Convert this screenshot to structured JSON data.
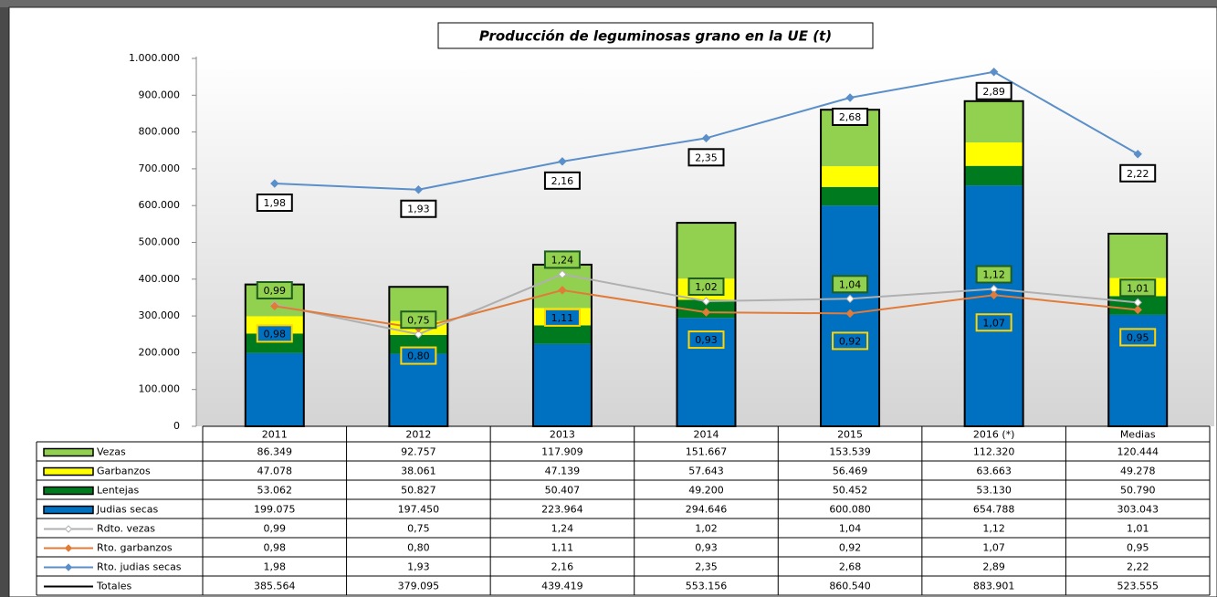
{
  "chart_data": {
    "type": "bar",
    "title": "Producción de leguminosas grano en la UE  (t)",
    "categories": [
      "2011",
      "2012",
      "2013",
      "2014",
      "2015",
      "2016 (*)",
      "Medias"
    ],
    "ylim": [
      0,
      1000000
    ],
    "yticks": [
      0,
      {
        "value": 100000,
        "label": "100.000"
      },
      {
        "value": 200000,
        "label": "200.000"
      },
      {
        "value": 300000,
        "label": "300.000"
      },
      {
        "value": 400000,
        "label": "400.000"
      },
      {
        "value": 500000,
        "label": "500.000"
      },
      {
        "value": 600000,
        "label": "600.000"
      },
      {
        "value": 700000,
        "label": "700.000"
      },
      {
        "value": 800000,
        "label": "800.000"
      },
      {
        "value": 900000,
        "label": "900.000"
      },
      {
        "value": 1000000,
        "label": "1.000.000"
      }
    ],
    "y2lim": [
      0,
      3
    ],
    "series": [
      {
        "name": "Vezas",
        "type": "bar",
        "color": "#92d050",
        "values": [
          86349,
          92757,
          117909,
          151667,
          153539,
          112320,
          120444
        ],
        "value_labels": [
          "86.349",
          "92.757",
          "117.909",
          "151.667",
          "153.539",
          "112.320",
          "120.444"
        ]
      },
      {
        "name": "Garbanzos",
        "type": "bar",
        "color": "#ffff00",
        "values": [
          47078,
          38061,
          47139,
          57643,
          56469,
          63663,
          49278
        ],
        "value_labels": [
          "47.078",
          "38.061",
          "47.139",
          "57.643",
          "56.469",
          "63.663",
          "49.278"
        ]
      },
      {
        "name": "Lentejas",
        "type": "bar",
        "color": "#007a1f",
        "values": [
          53062,
          50827,
          50407,
          49200,
          50452,
          53130,
          50790
        ],
        "value_labels": [
          "53.062",
          "50.827",
          "50.407",
          "49.200",
          "50.452",
          "53.130",
          "50.790"
        ]
      },
      {
        "name": "Judias secas",
        "type": "bar",
        "color": "#0070c0",
        "values": [
          199075,
          197450,
          223964,
          294646,
          600080,
          654788,
          303043
        ],
        "value_labels": [
          "199.075",
          "197.450",
          "223.964",
          "294.646",
          "600.080",
          "654.788",
          "303.043"
        ]
      },
      {
        "name": "Rdto. vezas",
        "type": "line",
        "axis": "y2",
        "color": "#b0b0b0",
        "values": [
          0.99,
          0.75,
          1.24,
          1.02,
          1.04,
          1.12,
          1.01
        ],
        "value_labels": [
          "0,99",
          "0,75",
          "1,24",
          "1,02",
          "1,04",
          "1,12",
          "1,01"
        ]
      },
      {
        "name": "Rto. garbanzos",
        "type": "line",
        "axis": "y2",
        "color": "#e07b39",
        "values": [
          0.98,
          0.8,
          1.11,
          0.93,
          0.92,
          1.07,
          0.95
        ],
        "value_labels": [
          "0,98",
          "0,80",
          "1,11",
          "0,93",
          "0,92",
          "1,07",
          "0,95"
        ]
      },
      {
        "name": "Rto. judias secas",
        "type": "line",
        "axis": "y2",
        "color": "#5b8fc9",
        "values": [
          1.98,
          1.93,
          2.16,
          2.35,
          2.68,
          2.89,
          2.22
        ],
        "value_labels": [
          "1,98",
          "1,93",
          "2,16",
          "2,35",
          "2,68",
          "2,89",
          "2,22"
        ]
      },
      {
        "name": "Totales",
        "type": "total",
        "color": "#000000",
        "values": [
          385564,
          379095,
          439419,
          553156,
          860540,
          883901,
          523555
        ],
        "value_labels": [
          "385.564",
          "379.095",
          "439.419",
          "553.156",
          "860.540",
          "883.901",
          "523.555"
        ]
      }
    ]
  }
}
